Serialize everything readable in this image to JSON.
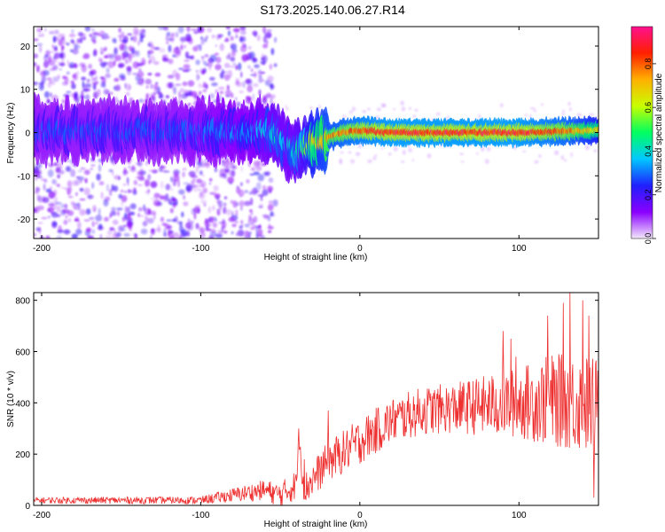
{
  "title": "S173.2025.140.06.27.R14",
  "chart_data": [
    {
      "type": "heatmap",
      "xlabel": "Height of straight line (km)",
      "ylabel": "Frequency (Hz)",
      "xlim": [
        -205,
        150
      ],
      "ylim": [
        -24.5,
        24.5
      ],
      "xticks": [
        -200,
        -100,
        0,
        100
      ],
      "yticks": [
        -20,
        -10,
        0,
        10,
        20
      ],
      "colorbar": {
        "label": "Normalized spectral amplitude",
        "range": [
          0,
          0.97
        ],
        "ticks": [
          0.0,
          0.2,
          0.4,
          0.6,
          0.8
        ],
        "tick_labels": [
          "0.0",
          "0.2",
          "0.4",
          "0.6",
          "0.8"
        ],
        "colors": [
          "#f4e8fb",
          "#8a00ff",
          "#2020ff",
          "#00c8ff",
          "#00ff60",
          "#c8ff00",
          "#ffb000",
          "#ff2000",
          "#ff1090"
        ]
      },
      "ridge": {
        "x": [
          -205,
          -120,
          -70,
          -60,
          -52,
          -45,
          -40,
          -35,
          -30,
          -20,
          -10,
          0,
          20,
          60,
          100,
          130,
          150
        ],
        "freq_hz": [
          0.5,
          0.5,
          0.0,
          0.5,
          -1.0,
          -3.5,
          -5.0,
          -3.0,
          -2.5,
          -1.0,
          0.0,
          0.5,
          0.0,
          0.0,
          0.0,
          0.3,
          0.5
        ],
        "peak_amplitude": [
          0.3,
          0.3,
          0.35,
          0.4,
          0.45,
          0.4,
          0.45,
          0.55,
          0.7,
          0.8,
          0.85,
          0.9,
          0.95,
          0.95,
          0.95,
          0.85,
          0.7
        ]
      }
    },
    {
      "type": "line",
      "xlabel": "Height of straight line (km)",
      "ylabel": "SNR (10 * v/v)",
      "xlim": [
        -205,
        150
      ],
      "ylim": [
        0,
        830
      ],
      "xticks": [
        -200,
        -100,
        0,
        100
      ],
      "yticks": [
        0,
        200,
        400,
        600,
        800
      ],
      "color": "#ee3030",
      "trend": {
        "x": [
          -205,
          -150,
          -100,
          -80,
          -60,
          -50,
          -40,
          -38,
          -35,
          -30,
          -20,
          0,
          20,
          40,
          60,
          80,
          100,
          120,
          140,
          150
        ],
        "y": [
          20,
          20,
          20,
          40,
          60,
          40,
          80,
          260,
          60,
          100,
          170,
          250,
          330,
          370,
          380,
          390,
          400,
          410,
          400,
          380
        ]
      },
      "noise_amplitude": {
        "x": [
          -205,
          -100,
          -60,
          -40,
          -20,
          0,
          20,
          60,
          100,
          120,
          150
        ],
        "y": [
          12,
          15,
          40,
          60,
          80,
          90,
          90,
          100,
          140,
          180,
          200
        ]
      },
      "spikes": [
        {
          "x": -38.5,
          "y": 300
        },
        {
          "x": -35,
          "y": 180
        },
        {
          "x": -20,
          "y": 370
        },
        {
          "x": 90,
          "y": 680
        },
        {
          "x": 95,
          "y": 650
        },
        {
          "x": 98,
          "y": 580
        },
        {
          "x": 118,
          "y": 740
        },
        {
          "x": 128,
          "y": 790
        },
        {
          "x": 132,
          "y": 830
        },
        {
          "x": 140,
          "y": 800
        },
        {
          "x": 144,
          "y": 740
        },
        {
          "x": 147,
          "y": 30
        }
      ]
    }
  ]
}
